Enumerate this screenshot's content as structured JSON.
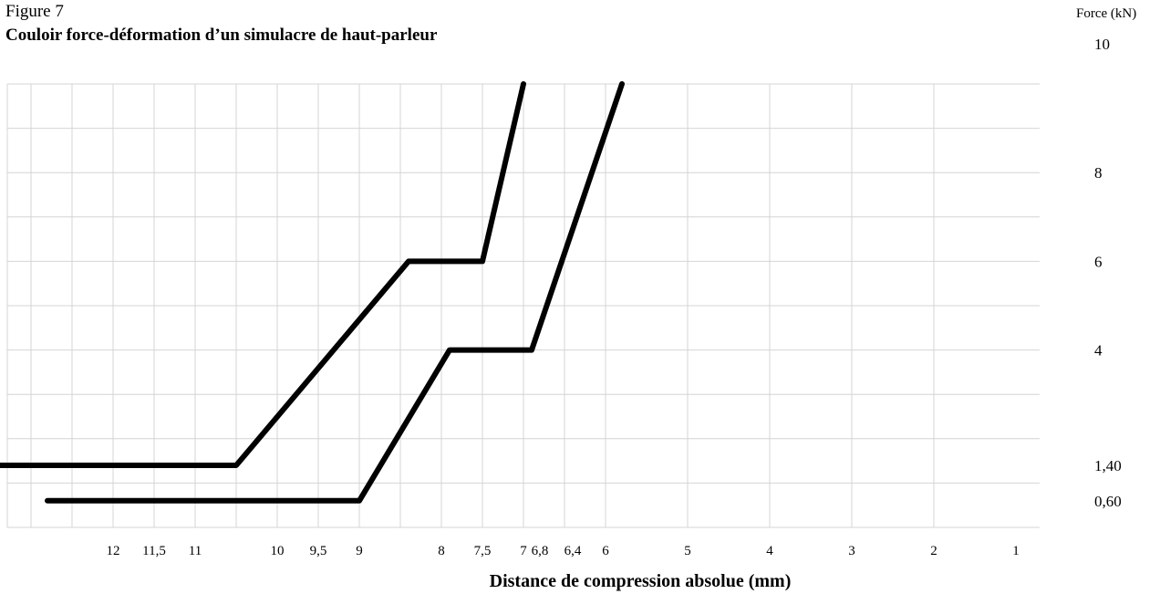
{
  "figure_label": "Figure 7",
  "chart_data": {
    "type": "line",
    "title": "Couloir force-déformation d’un simulacre de haut-parleur",
    "xlabel": "Distance de compression absolue (mm)",
    "ylabel": "Force (kN)",
    "x_reversed": true,
    "xlim": [
      13,
      1
    ],
    "ylim": [
      0,
      10
    ],
    "grid": true,
    "x_ticks": [
      {
        "v": 12,
        "label": "12"
      },
      {
        "v": 11.5,
        "label": "11,5"
      },
      {
        "v": 11,
        "label": "11"
      },
      {
        "v": 10,
        "label": "10"
      },
      {
        "v": 9.5,
        "label": "9,5"
      },
      {
        "v": 9,
        "label": "9"
      },
      {
        "v": 8,
        "label": "8"
      },
      {
        "v": 7.5,
        "label": "7,5"
      },
      {
        "v": 7,
        "label": "7"
      },
      {
        "v": 6.8,
        "label": "6,8"
      },
      {
        "v": 6.4,
        "label": "6,4"
      },
      {
        "v": 6,
        "label": "6"
      },
      {
        "v": 5,
        "label": "5"
      },
      {
        "v": 4,
        "label": "4"
      },
      {
        "v": 3,
        "label": "3"
      },
      {
        "v": 2,
        "label": "2"
      },
      {
        "v": 1,
        "label": "1"
      }
    ],
    "y_ticks": [
      {
        "v": 10,
        "label": "10"
      },
      {
        "v": 8,
        "label": "8"
      },
      {
        "v": 6,
        "label": "6"
      },
      {
        "v": 4,
        "label": "4"
      },
      {
        "v": 1.4,
        "label": "1,40"
      },
      {
        "v": 0.6,
        "label": "0,60"
      }
    ],
    "series": [
      {
        "color": "#000000",
        "points": [
          [
            13.5,
            1.4
          ],
          [
            10.5,
            1.4
          ],
          [
            8.4,
            6.0
          ],
          [
            7.5,
            6.0
          ],
          [
            7.0,
            10.0
          ]
        ]
      },
      {
        "color": "#000000",
        "points": [
          [
            12.8,
            0.6
          ],
          [
            9.0,
            0.6
          ],
          [
            7.9,
            4.0
          ],
          [
            6.9,
            4.0
          ],
          [
            5.8,
            10.0
          ]
        ]
      }
    ]
  }
}
